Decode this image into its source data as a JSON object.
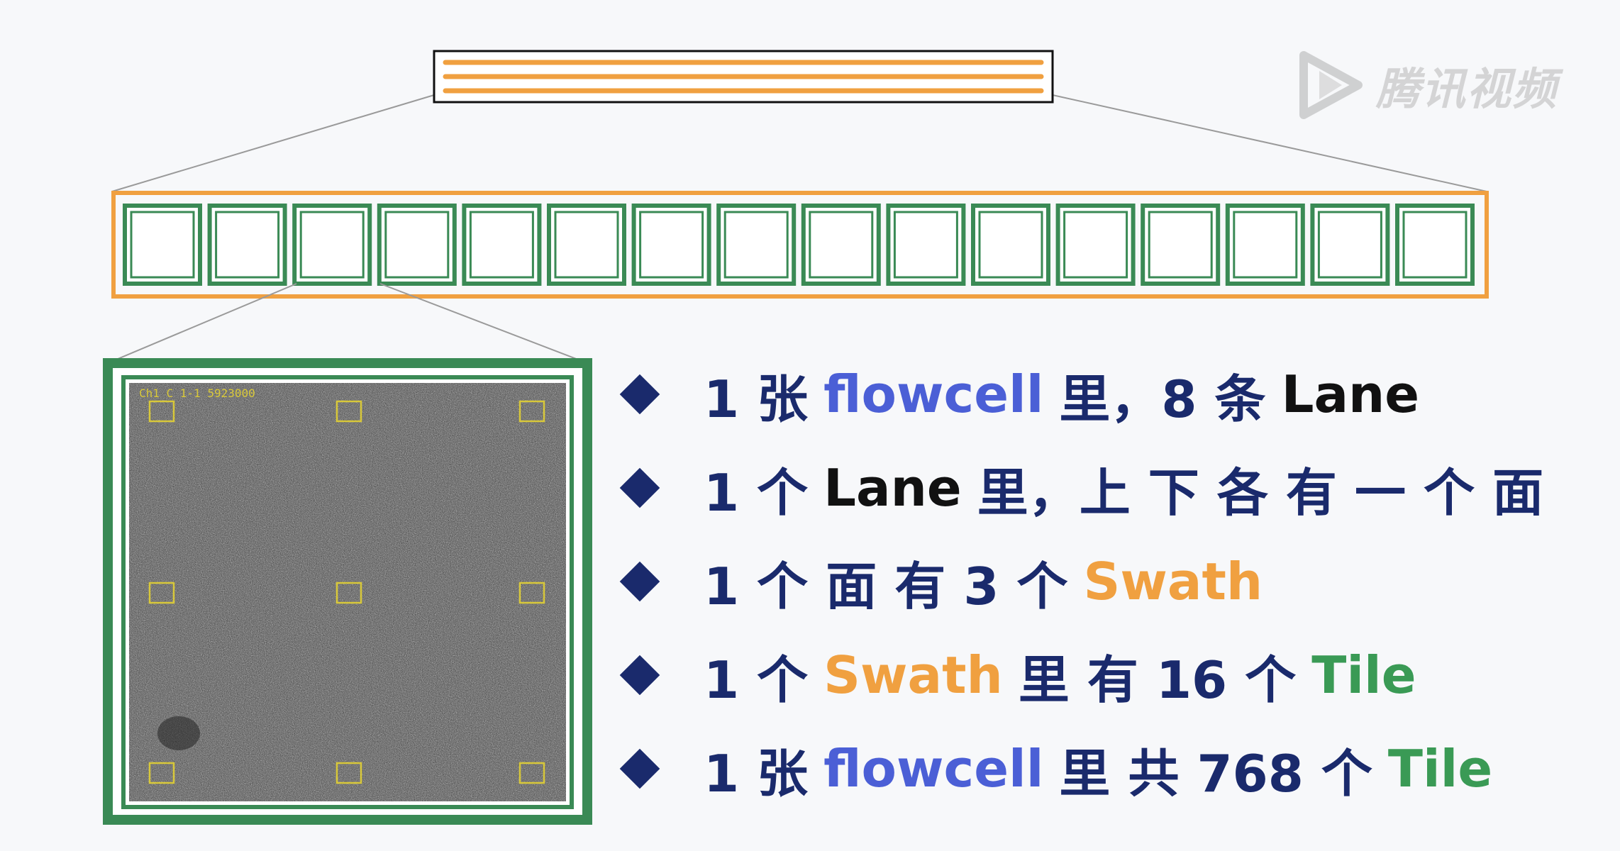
{
  "colors": {
    "orange": "#f0a040",
    "green": "#3a8a55",
    "navy": "#1a2a6c",
    "blue": "#4b5fd6"
  },
  "watermark": {
    "text": "腾讯视频",
    "icon": "play-logo-icon"
  },
  "diagram": {
    "flowcell_lines": 3,
    "tile_count_in_swath": 16,
    "tile_image_marks": 9
  },
  "bullets": [
    {
      "segments": [
        {
          "text": "1 张",
          "color": "navy"
        },
        {
          "text": "flowcell",
          "color": "blue"
        },
        {
          "text": "里，8 条",
          "color": "navy"
        },
        {
          "text": "Lane",
          "color": "black"
        }
      ]
    },
    {
      "segments": [
        {
          "text": "1 个",
          "color": "navy"
        },
        {
          "text": "Lane",
          "color": "black"
        },
        {
          "text": "里，上 下 各 有 一 个 面",
          "color": "navy"
        }
      ]
    },
    {
      "segments": [
        {
          "text": "1 个 面 有 3 个",
          "color": "navy"
        },
        {
          "text": "Swath",
          "color": "orange"
        }
      ]
    },
    {
      "segments": [
        {
          "text": "1 个",
          "color": "navy"
        },
        {
          "text": "Swath",
          "color": "orange"
        },
        {
          "text": "里 有 16 个",
          "color": "navy"
        },
        {
          "text": "Tile",
          "color": "green"
        }
      ]
    },
    {
      "segments": [
        {
          "text": "1 张",
          "color": "navy"
        },
        {
          "text": "flowcell",
          "color": "blue"
        },
        {
          "text": "里 共 768 个",
          "color": "navy"
        },
        {
          "text": "Tile",
          "color": "green"
        }
      ]
    }
  ]
}
